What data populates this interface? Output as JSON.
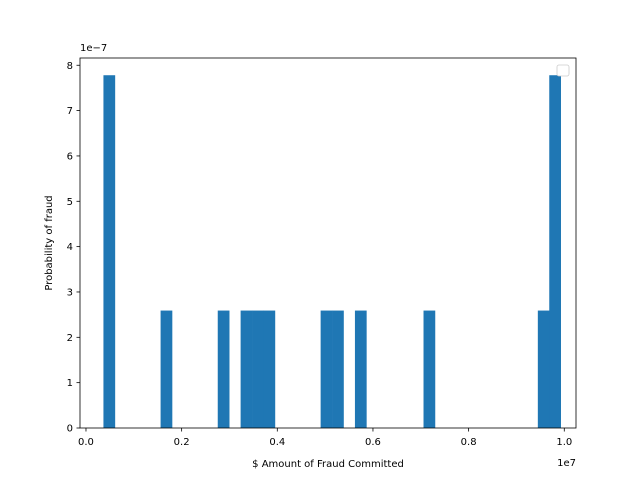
{
  "chart_data": {
    "type": "bar",
    "xlabel": "$ Amount of Fraud Committed",
    "ylabel": "Probability of fraud",
    "x_offset_label": "1e7",
    "y_offset_label": "1e−7",
    "x_scale": 10000000,
    "y_scale": 1e-07,
    "xlim": [
      -0.0125,
      1.0245
    ],
    "ylim": [
      0,
      8.16
    ],
    "x_ticks": [
      0.0,
      0.2,
      0.4,
      0.6,
      0.8,
      1.0
    ],
    "x_tick_labels": [
      "0.0",
      "0.2",
      "0.4",
      "0.6",
      "0.8",
      "1.0"
    ],
    "y_ticks": [
      0,
      1,
      2,
      3,
      4,
      5,
      6,
      7,
      8
    ],
    "y_tick_labels": [
      "0",
      "1",
      "2",
      "3",
      "4",
      "5",
      "6",
      "7",
      "8"
    ],
    "bin_start": 0.0365,
    "bin_width": 0.0239,
    "values": [
      7.78,
      0,
      0,
      0,
      0,
      2.59,
      0,
      0,
      0,
      0,
      2.59,
      0,
      2.59,
      2.59,
      2.59,
      0,
      0,
      0,
      0,
      2.59,
      2.59,
      0,
      2.59,
      0,
      0,
      0,
      0,
      0,
      2.59,
      0,
      0,
      0,
      0,
      0,
      0,
      0,
      0,
      0,
      2.59,
      7.78
    ],
    "color": "#1f77b4",
    "legend": "top-right",
    "legend_entries": [],
    "grid": false
  }
}
